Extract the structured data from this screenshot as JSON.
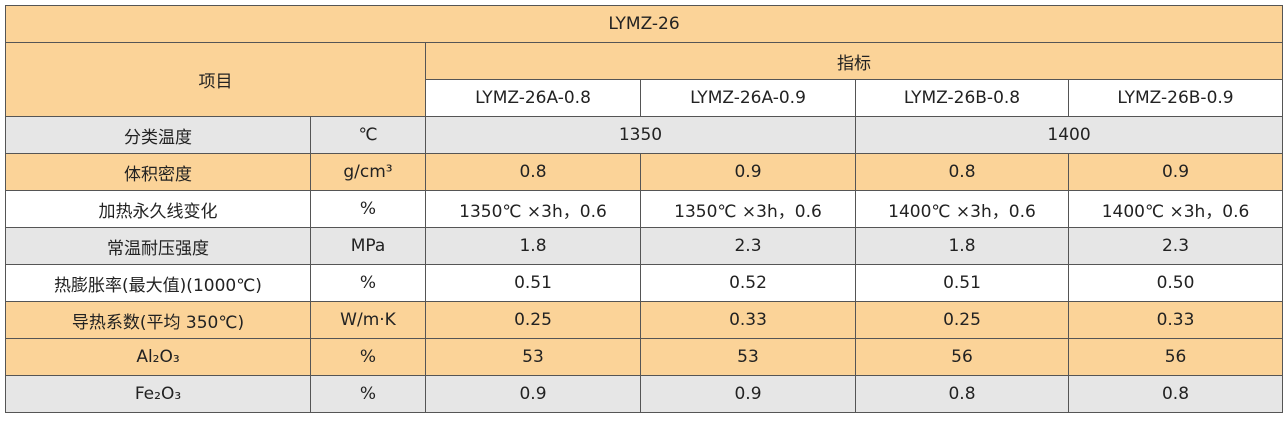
{
  "table": {
    "title": "LYMZ-26",
    "header": {
      "item": "项目",
      "indicator": "指标",
      "grades": [
        "LYMZ-26A-0.8",
        "LYMZ-26A-0.9",
        "LYMZ-26B-0.8",
        "LYMZ-26B-0.9"
      ]
    },
    "rows": [
      {
        "name": "分类温度",
        "unit": "℃",
        "values": [
          "1350",
          "1400"
        ]
      },
      {
        "name": "体积密度",
        "unit": "g/cm³",
        "values": [
          "0.8",
          "0.9",
          "0.8",
          "0.9"
        ]
      },
      {
        "name": "加热永久线变化",
        "unit": "%",
        "values": [
          "1350℃ ×3h，0.6",
          "1350℃ ×3h，0.6",
          "1400℃ ×3h，0.6",
          "1400℃ ×3h，0.6"
        ]
      },
      {
        "name": "常温耐压强度",
        "unit": "MPa",
        "values": [
          "1.8",
          "2.3",
          "1.8",
          "2.3"
        ]
      },
      {
        "name": "热膨胀率(最大值)(1000℃)",
        "unit": "%",
        "values": [
          "0.51",
          "0.52",
          "0.51",
          "0.50"
        ]
      },
      {
        "name": "导热系数(平均 350℃)",
        "unit": "W/m·K",
        "values": [
          "0.25",
          "0.33",
          "0.25",
          "0.33"
        ]
      },
      {
        "name": "Al₂O₃",
        "unit": "%",
        "values": [
          "53",
          "53",
          "56",
          "56"
        ]
      },
      {
        "name": "Fe₂O₃",
        "unit": "%",
        "values": [
          "0.9",
          "0.9",
          "0.8",
          "0.8"
        ]
      }
    ]
  }
}
